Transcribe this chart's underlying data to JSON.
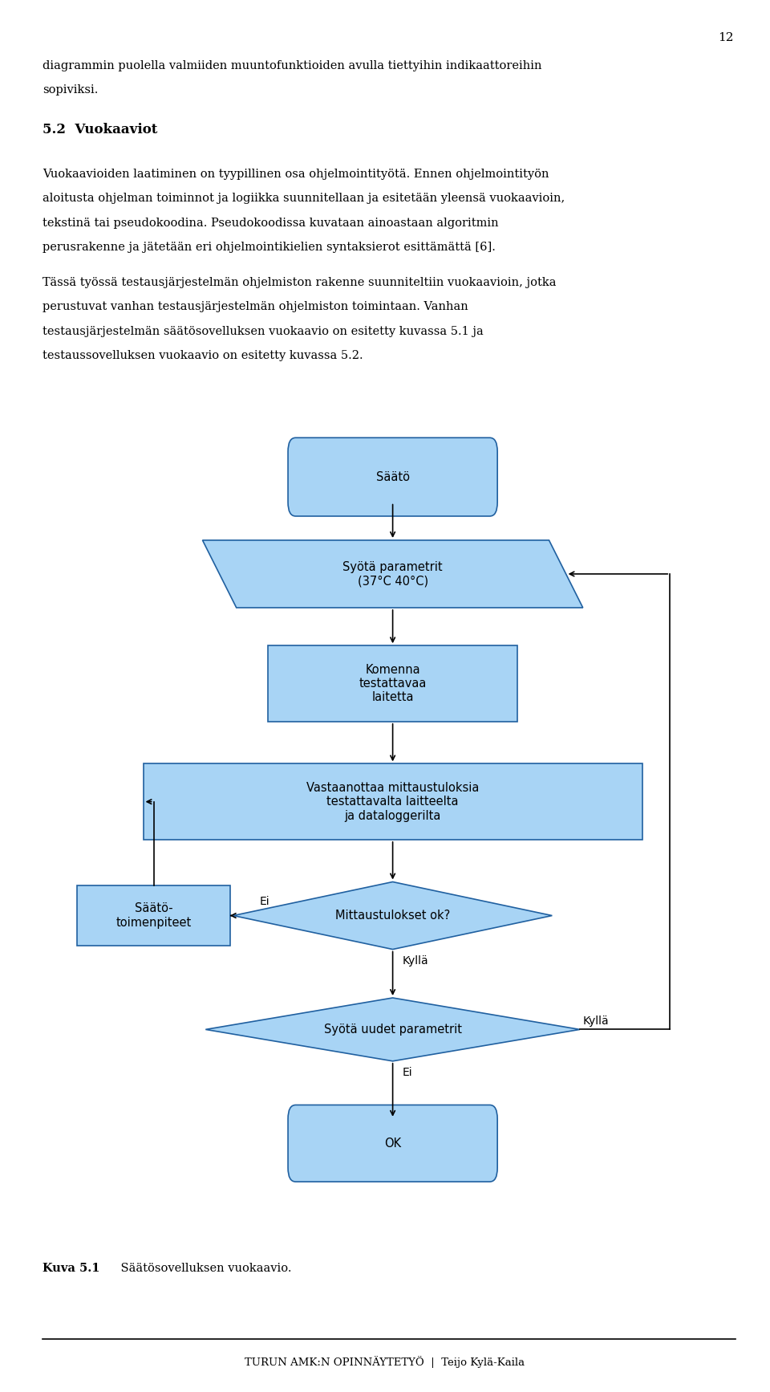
{
  "page_number": "12",
  "body_text_lines": [
    "diagrammin puolella valmiiden muuntofunktioiden avulla tiettyihin indikaattoreihin",
    "sopiviksi."
  ],
  "section_heading": "5.2  Vuokaaviot",
  "para1_lines": [
    "Vuokaavioiden laatiminen on tyypillinen osa ohjelmointityötä. Ennen ohjelmointityön",
    "aloitusta ohjelman toiminnot ja logiikka suunnitellaan ja esitetään yleensä vuokaavioin,",
    "tekstinä tai pseudokoodina. Pseudokoodissa kuvataan ainoastaan algoritmin",
    "perusrakenne ja jätetään eri ohjelmointikielien syntaksierot esittämättä [6]."
  ],
  "para2_lines": [
    "Tässä työssä testausjärjestelmän ohjelmiston rakenne suunniteltiin vuokaavioin, jotka",
    "perustuvat vanhan testausjärjestelmän ohjelmiston toimintaan. Vanhan",
    "testausjärjestelmän säätösovelluksen vuokaavio on esitetty kuvassa 5.1 ja",
    "testaussovelluksen vuokaavio on esitetty kuvassa 5.2."
  ],
  "caption_bold": "Kuva 5.1",
  "caption_rest": "    Säätösovelluksen vuokaavio.",
  "footer": "TURUN AMK:N OPINNÄYTETYÖ  |  Teijo Kylä-Kaila",
  "box_fill": "#a8d4f5",
  "box_edge": "#2060a0",
  "text_color": "#000000",
  "bg_color": "#ffffff"
}
